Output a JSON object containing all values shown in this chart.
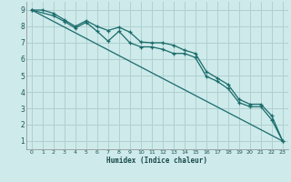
{
  "xlabel": "Humidex (Indice chaleur)",
  "bg_color": "#ceeaea",
  "grid_color": "#b0d0d0",
  "line_color": "#1a6b6b",
  "xlim": [
    -0.5,
    23.5
  ],
  "ylim": [
    0.5,
    9.5
  ],
  "xticks": [
    0,
    1,
    2,
    3,
    4,
    5,
    6,
    7,
    8,
    9,
    10,
    11,
    12,
    13,
    14,
    15,
    16,
    17,
    18,
    19,
    20,
    21,
    22,
    23
  ],
  "yticks": [
    1,
    2,
    3,
    4,
    5,
    6,
    7,
    8,
    9
  ],
  "line1_x": [
    0,
    1,
    2,
    3,
    4,
    5,
    6,
    7,
    8,
    9,
    10,
    11,
    12,
    13,
    14,
    15,
    16,
    17,
    18,
    19,
    20,
    21,
    22,
    23
  ],
  "line1_y": [
    9,
    9,
    8.8,
    8.4,
    8.0,
    8.35,
    8.0,
    7.75,
    7.95,
    7.65,
    7.05,
    7.0,
    7.0,
    6.85,
    6.55,
    6.35,
    5.25,
    4.85,
    4.45,
    3.55,
    3.25,
    3.25,
    2.55,
    1.0
  ],
  "line2_x": [
    0,
    2,
    3,
    4,
    5,
    6,
    7,
    8,
    9,
    10,
    11,
    12,
    13,
    14,
    15,
    16,
    17,
    18,
    19,
    20,
    21,
    22,
    23
  ],
  "line2_y": [
    9,
    8.65,
    8.3,
    7.9,
    8.25,
    7.7,
    7.1,
    7.7,
    7.0,
    6.75,
    6.75,
    6.6,
    6.35,
    6.35,
    6.1,
    4.95,
    4.65,
    4.2,
    3.35,
    3.1,
    3.1,
    2.3,
    1.0
  ],
  "line3_x": [
    0,
    23
  ],
  "line3_y": [
    9,
    1.0
  ]
}
